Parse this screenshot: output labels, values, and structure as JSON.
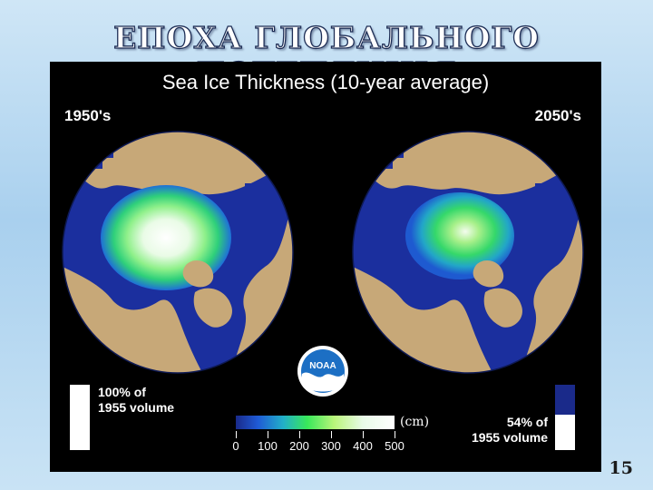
{
  "slide": {
    "title": "ЕПОХА ГЛОБАЛЬНОГО ПОТЕПЛІННЯ",
    "page_number": "15"
  },
  "figure": {
    "title": "Sea Ice Thickness (10-year average)",
    "left": {
      "decade": "1950's",
      "volume_line1": "100% of",
      "volume_line2": "1955 volume",
      "volume_fraction": 1.0
    },
    "right": {
      "decade": "2050's",
      "volume_line1": "54% of",
      "volume_line2": "1955 volume",
      "volume_fraction": 0.54
    },
    "colorbar": {
      "unit": "(cm)",
      "ticks": [
        "0",
        "100",
        "200",
        "300",
        "400",
        "500"
      ],
      "min": 0,
      "max": 500
    },
    "logo_text": "NOAA"
  },
  "colors": {
    "ocean": "#1b2f9e",
    "land": "#c7a878",
    "ice_thin": "#2fc6a0",
    "ice_thick": "#f2fbe8",
    "volume_full": "#ffffff",
    "volume_lost": "#1a2a8a"
  }
}
